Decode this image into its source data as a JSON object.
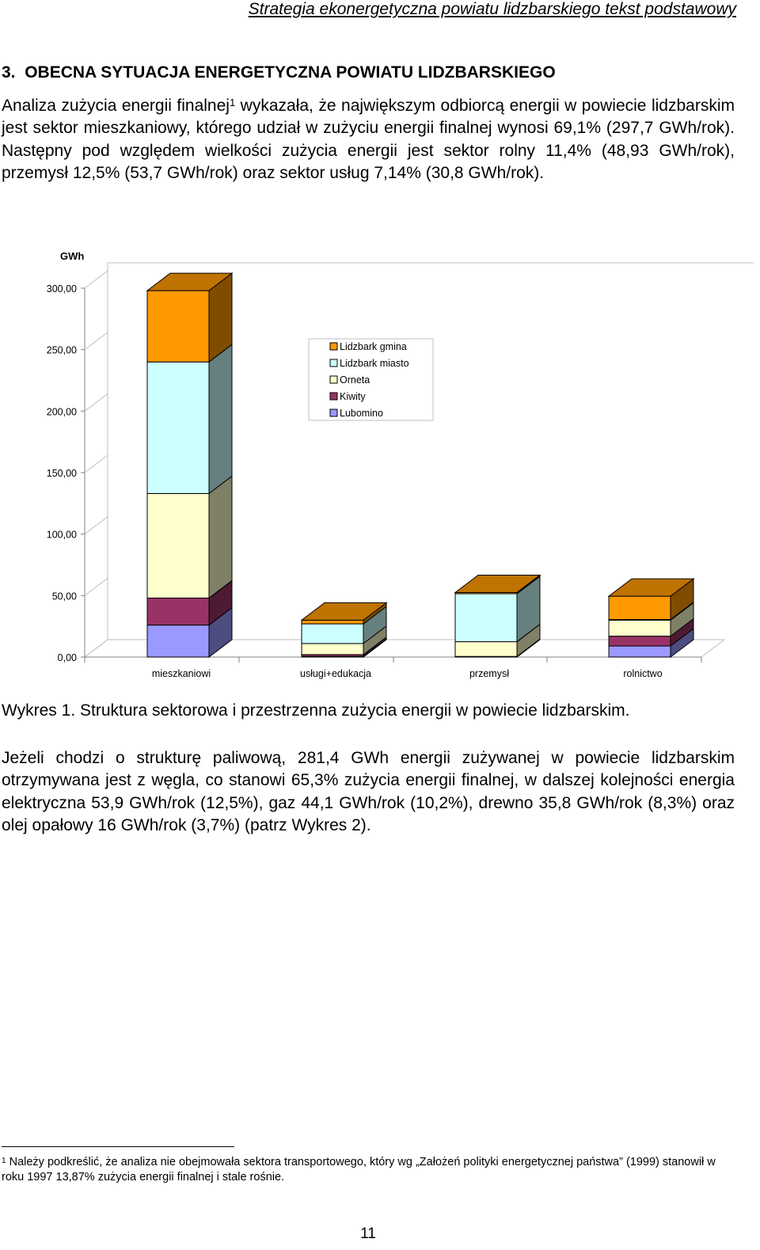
{
  "header": {
    "running_title": "Strategia ekonergetyczna powiatu lidzbarskiego tekst podstawowy"
  },
  "section": {
    "number": "3.",
    "title": "OBECNA SYTUACJA ENERGETYCZNA POWIATU LIDZBARSKIEGO"
  },
  "paragraph1": {
    "text_a": "Analiza zużycia energii finalnej",
    "footnote_ref": "1",
    "text_b": " wykazała, że największym odbiorcą energii w powiecie lidzbarskim jest sektor mieszkaniowy, którego udział w zużyciu energii finalnej wynosi 69,1% (297,7 GWh/rok). Następny pod względem wielkości zużycia energii jest sektor rolny 11,4% (48,93 GWh/rok), przemysł 12,5% (53,7 GWh/rok) oraz sektor usług 7,14% (30,8 GWh/rok)."
  },
  "chart_data": {
    "type": "bar",
    "stacked": true,
    "three_d": true,
    "title": "",
    "xlabel": "",
    "ylabel": "GWh",
    "ylim": [
      0,
      300
    ],
    "y_ticks": [
      "0,00",
      "50,00",
      "100,00",
      "150,00",
      "200,00",
      "250,00",
      "300,00"
    ],
    "y_tick_values": [
      0,
      50,
      100,
      150,
      200,
      250,
      300
    ],
    "categories": [
      "mieszkaniowi",
      "usługi+edukacja",
      "przemysł",
      "rolnictwo"
    ],
    "series": [
      {
        "name": "Lubomino",
        "values": [
          26,
          0.5,
          0,
          9
        ],
        "color": "#9999ff"
      },
      {
        "name": "Kiwity",
        "values": [
          22,
          1.5,
          0.5,
          8
        ],
        "color": "#993366"
      },
      {
        "name": "Orneta",
        "values": [
          85,
          9,
          12,
          13
        ],
        "color": "#ffffcc"
      },
      {
        "name": "Lidzbark miasto",
        "values": [
          107,
          16,
          39,
          0.5
        ],
        "color": "#ccffff"
      },
      {
        "name": "Lidzbark gmina",
        "values": [
          58,
          3,
          1,
          19
        ],
        "color": "#ff9900"
      }
    ],
    "legend_order": [
      "Lidzbark gmina",
      "Lidzbark miasto",
      "Orneta",
      "Kiwity",
      "Lubomino"
    ],
    "legend_position": "center",
    "grid": false
  },
  "caption": {
    "text": "Wykres 1. Struktura sektorowa i przestrzenna zużycia energii w powiecie lidzbarskim."
  },
  "paragraph2": {
    "text": "Jeżeli chodzi o strukturę paliwową, 281,4 GWh energii zużywanej w powiecie lidzbarskim otrzymywana jest z węgla, co stanowi 65,3% zużycia energii finalnej, w dalszej kolejności energia elektryczna 53,9 GWh/rok (12,5%), gaz 44,1 GWh/rok (10,2%), drewno 35,8 GWh/rok (8,3%) oraz olej opałowy 16 GWh/rok (3,7%) (patrz Wykres 2)."
  },
  "footnote": {
    "number": "1",
    "text": " Należy podkreślić, że analiza nie obejmowała sektora transportowego, który wg „Założeń polityki energetycznej państwa” (1999) stanowił w roku 1997 13,87% zużycia energii finalnej i stale rośnie."
  },
  "page_number": "11"
}
